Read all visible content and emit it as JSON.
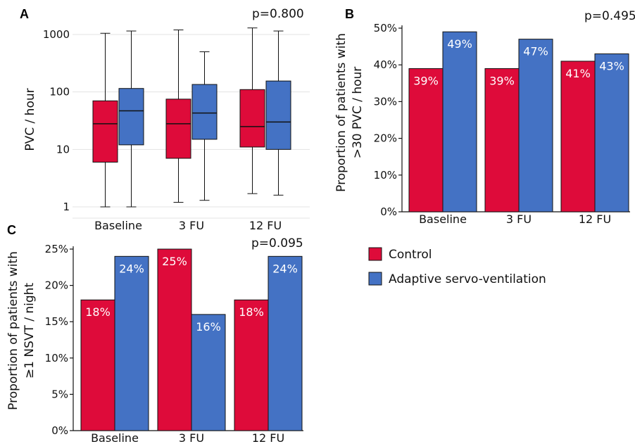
{
  "legend": [
    {
      "name": "Control",
      "color": "#de0b3a"
    },
    {
      "name": "Adaptive servo-ventilation",
      "color": "#4472c4"
    }
  ],
  "chart_data": [
    {
      "panel": "A",
      "type": "box",
      "annotation": "p=0.800",
      "ylabel": "PVC / hour",
      "yscale": "log",
      "ylim": [
        0.8,
        2000
      ],
      "yticks": [
        "1",
        "10",
        "100",
        "1000"
      ],
      "grid": true,
      "categories": [
        "Baseline",
        "3 FU",
        "12 FU"
      ],
      "series": [
        {
          "name": "Control",
          "color": "#de0b3a",
          "boxes": [
            {
              "min": 1.0,
              "q1": 6,
              "median": 28,
              "q3": 70,
              "max": 1050
            },
            {
              "min": 1.2,
              "q1": 7,
              "median": 28,
              "q3": 75,
              "max": 1200
            },
            {
              "min": 1.7,
              "q1": 11,
              "median": 25,
              "q3": 110,
              "max": 1300
            }
          ]
        },
        {
          "name": "Adaptive servo-ventilation",
          "color": "#4472c4",
          "boxes": [
            {
              "min": 1.0,
              "q1": 12,
              "median": 47,
              "q3": 115,
              "max": 1150
            },
            {
              "min": 1.3,
              "q1": 15,
              "median": 43,
              "q3": 135,
              "max": 500
            },
            {
              "min": 1.6,
              "q1": 10,
              "median": 30,
              "q3": 155,
              "max": 1150
            }
          ]
        }
      ]
    },
    {
      "panel": "B",
      "type": "bar",
      "annotation": "p=0.495",
      "ylabel": [
        "Proportion of patients with",
        ">30 PVC / hour"
      ],
      "ylim": [
        0,
        50
      ],
      "yticks": [
        "0%",
        "10%",
        "20%",
        "30%",
        "40%",
        "50%"
      ],
      "categories": [
        "Baseline",
        "3 FU",
        "12 FU"
      ],
      "series": [
        {
          "name": "Control",
          "color": "#de0b3a",
          "values": [
            39,
            39,
            41
          ],
          "labels": [
            "39%",
            "39%",
            "41%"
          ]
        },
        {
          "name": "Adaptive servo-ventilation",
          "color": "#4472c4",
          "values": [
            49,
            47,
            43
          ],
          "labels": [
            "49%",
            "47%",
            "43%"
          ]
        }
      ]
    },
    {
      "panel": "C",
      "type": "bar",
      "annotation": "p=0.095",
      "ylabel": [
        "Proportion of patients with",
        "≥1 NSVT / night"
      ],
      "ylim": [
        0,
        25
      ],
      "yticks": [
        "0%",
        "5%",
        "10%",
        "15%",
        "20%",
        "25%"
      ],
      "categories": [
        "Baseline",
        "3 FU",
        "12 FU"
      ],
      "series": [
        {
          "name": "Control",
          "color": "#de0b3a",
          "values": [
            18,
            25,
            18
          ],
          "labels": [
            "18%",
            "25%",
            "18%"
          ]
        },
        {
          "name": "Adaptive servo-ventilation",
          "color": "#4472c4",
          "values": [
            24,
            16,
            24
          ],
          "labels": [
            "24%",
            "16%",
            "24%"
          ]
        }
      ]
    }
  ]
}
